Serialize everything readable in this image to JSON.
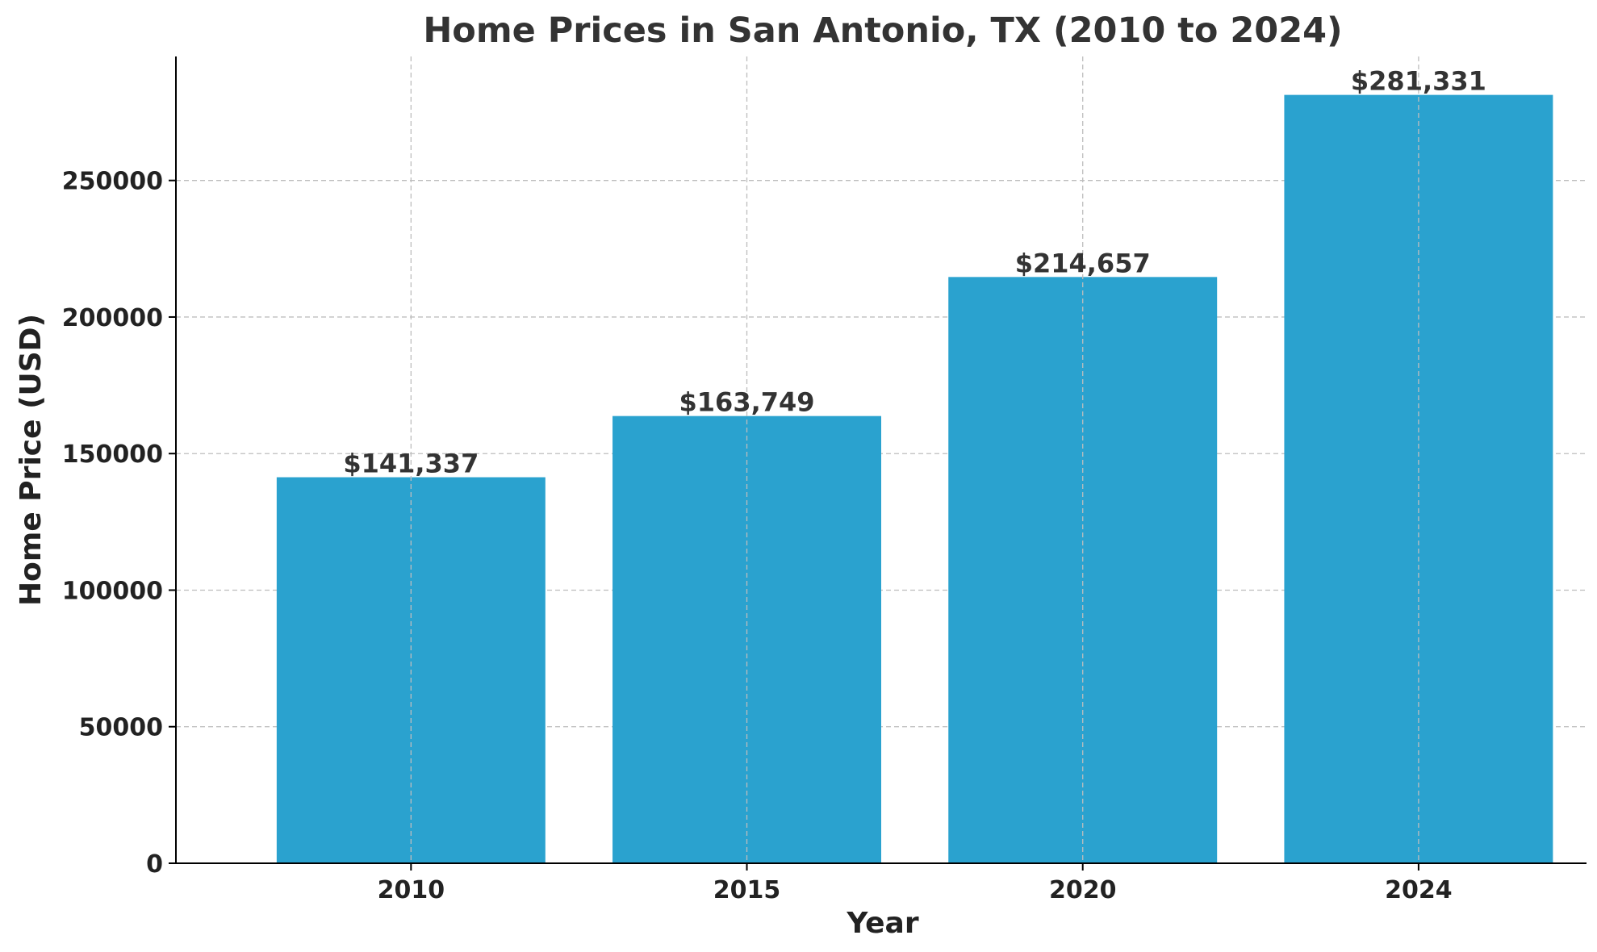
{
  "chart_data": {
    "type": "bar",
    "title": "Home Prices in San Antonio, TX (2010 to 2024)",
    "xlabel": "Year",
    "ylabel": "Home Price (USD)",
    "categories": [
      "2010",
      "2015",
      "2020",
      "2024"
    ],
    "values": [
      141337,
      163749,
      214657,
      281331
    ],
    "value_labels": [
      "$141,337",
      "$163,749",
      "$214,657",
      "$281,331"
    ],
    "ylim": [
      0,
      295400
    ],
    "yticks": [
      0,
      50000,
      100000,
      150000,
      200000,
      250000
    ],
    "ytick_labels": [
      "0",
      "50000",
      "100000",
      "150000",
      "200000",
      "250000"
    ],
    "grid": true,
    "legend": "none",
    "bar_color": "#2aa2cf"
  }
}
